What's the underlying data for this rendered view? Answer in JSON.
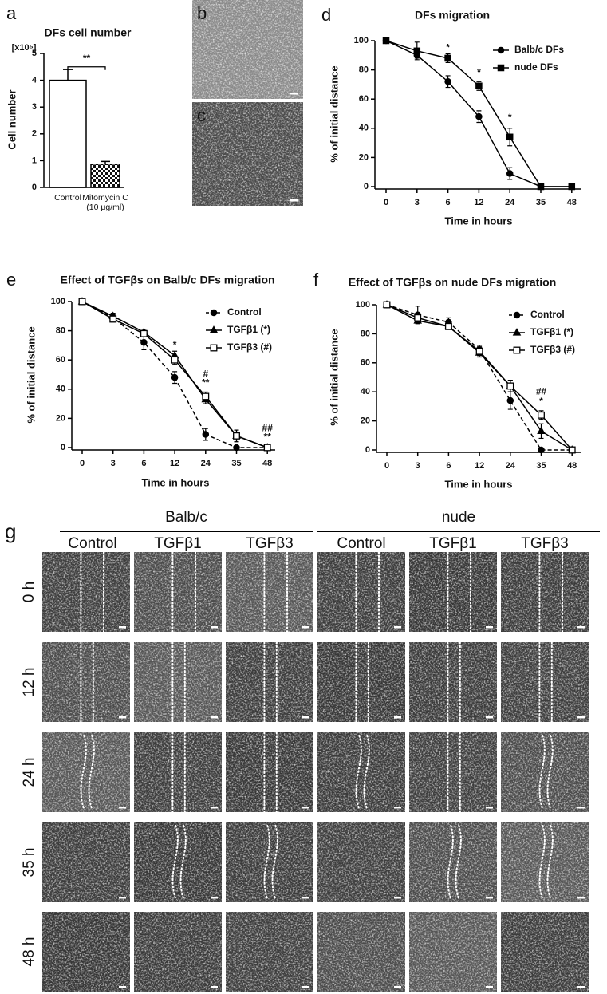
{
  "chart_data": [
    {
      "panel": "a",
      "type": "bar",
      "title": "DFs cell number",
      "y_unit": "[x10⁵]",
      "ylabel": "Cell number",
      "categories": [
        "Control",
        "Mitomycin C\n(10 μg/ml)"
      ],
      "values": [
        4.0,
        0.87
      ],
      "errors": [
        0.4,
        0.1
      ],
      "fills": [
        "#ffffff",
        "checker"
      ],
      "ylim": [
        0,
        5
      ],
      "yticks": [
        0,
        1,
        2,
        3,
        4,
        5
      ],
      "annotations": [
        {
          "text": "**",
          "y": 4.8
        }
      ]
    },
    {
      "panel": "d",
      "type": "line",
      "title": "DFs migration",
      "xlabel": "Time in hours",
      "ylabel": "% of initial distance",
      "categories": [
        0,
        3,
        6,
        12,
        24,
        35,
        48
      ],
      "ylim": [
        0,
        100
      ],
      "yticks": [
        0,
        20,
        40,
        60,
        80,
        100
      ],
      "legend": "upper right",
      "series": [
        {
          "name": "Balb/c DFs",
          "color": "#000000",
          "marker": "circle",
          "dash": false,
          "values": [
            100,
            90,
            72,
            48,
            9,
            0,
            0
          ],
          "errors": [
            1,
            2,
            4,
            4,
            4,
            0,
            0
          ]
        },
        {
          "name": "nude DFs",
          "color": "#000000",
          "marker": "square",
          "dash": false,
          "values": [
            100,
            93,
            88,
            69,
            34,
            0,
            0
          ],
          "errors": [
            1,
            6,
            3,
            3,
            6,
            0,
            0
          ]
        }
      ],
      "annotations": [
        {
          "text": "*",
          "x": 6,
          "y": 95
        },
        {
          "text": "*",
          "x": 12,
          "y": 78
        },
        {
          "text": "*",
          "x": 24,
          "y": 47
        }
      ]
    },
    {
      "panel": "e",
      "type": "line",
      "title": "Effect of TGFβs on Balb/c DFs migration",
      "xlabel": "Time in hours",
      "ylabel": "% of initial distance",
      "categories": [
        0,
        3,
        6,
        12,
        24,
        35,
        48
      ],
      "ylim": [
        0,
        100
      ],
      "yticks": [
        0,
        20,
        40,
        60,
        80,
        100
      ],
      "legend": "upper right",
      "series": [
        {
          "name": "Control",
          "color": "#000000",
          "marker": "circle",
          "dash": true,
          "values": [
            100,
            89,
            72,
            48,
            9,
            0,
            0
          ],
          "errors": [
            1,
            2,
            5,
            4,
            4,
            0,
            0
          ]
        },
        {
          "name": "TGFβ1 (*)",
          "color": "#000000",
          "marker": "triangle",
          "dash": false,
          "values": [
            100,
            90,
            79,
            63,
            33,
            8,
            0
          ],
          "errors": [
            1,
            2,
            2,
            3,
            3,
            4,
            0
          ]
        },
        {
          "name": "TGFβ3 (#)",
          "color": "#000000",
          "marker": "open-square",
          "dash": false,
          "values": [
            100,
            88,
            78,
            60,
            35,
            8,
            0
          ],
          "errors": [
            1,
            2,
            2,
            3,
            3,
            4,
            0
          ]
        }
      ],
      "annotations": [
        {
          "text": "*",
          "x": 12,
          "y": 70
        },
        {
          "text": "#",
          "x": 24,
          "y": 50
        },
        {
          "text": "**",
          "x": 24,
          "y": 44
        },
        {
          "text": "##",
          "x": 48,
          "y": 13
        },
        {
          "text": "**",
          "x": 48,
          "y": 7
        }
      ]
    },
    {
      "panel": "f",
      "type": "line",
      "title": "Effect of TGFβs on nude DFs migration",
      "xlabel": "Time in hours",
      "ylabel": "% of initial distance",
      "categories": [
        0,
        3,
        6,
        12,
        24,
        35,
        48
      ],
      "ylim": [
        0,
        100
      ],
      "yticks": [
        0,
        20,
        40,
        60,
        80,
        100
      ],
      "legend": "upper right",
      "series": [
        {
          "name": "Control",
          "color": "#000000",
          "marker": "circle",
          "dash": true,
          "values": [
            100,
            93,
            88,
            69,
            34,
            0,
            0
          ],
          "errors": [
            1,
            6,
            3,
            3,
            6,
            0,
            0
          ]
        },
        {
          "name": "TGFβ1 (*)",
          "color": "#000000",
          "marker": "triangle",
          "dash": false,
          "values": [
            100,
            89,
            85,
            67,
            44,
            13,
            0
          ],
          "errors": [
            1,
            2,
            2,
            3,
            4,
            5,
            0
          ]
        },
        {
          "name": "TGFβ3 (#)",
          "color": "#000000",
          "marker": "open-square",
          "dash": false,
          "values": [
            100,
            91,
            85,
            68,
            44,
            24,
            0
          ],
          "errors": [
            1,
            2,
            2,
            3,
            4,
            3,
            0
          ]
        }
      ],
      "annotations": [
        {
          "text": "##",
          "x": 35,
          "y": 40
        },
        {
          "text": "*",
          "x": 35,
          "y": 33
        }
      ]
    }
  ],
  "micrographs": [
    {
      "panel": "b"
    },
    {
      "panel": "c"
    }
  ],
  "panel_g": {
    "panel": "g",
    "groups": [
      {
        "name": "Balb/c",
        "columns": [
          "Control",
          "TGFβ1",
          "TGFβ3"
        ]
      },
      {
        "name": "nude",
        "columns": [
          "Control",
          "TGFβ1",
          "TGFβ3"
        ]
      }
    ],
    "rows": [
      "0 h",
      "12 h",
      "24 h",
      "35 h",
      "48 h"
    ]
  }
}
